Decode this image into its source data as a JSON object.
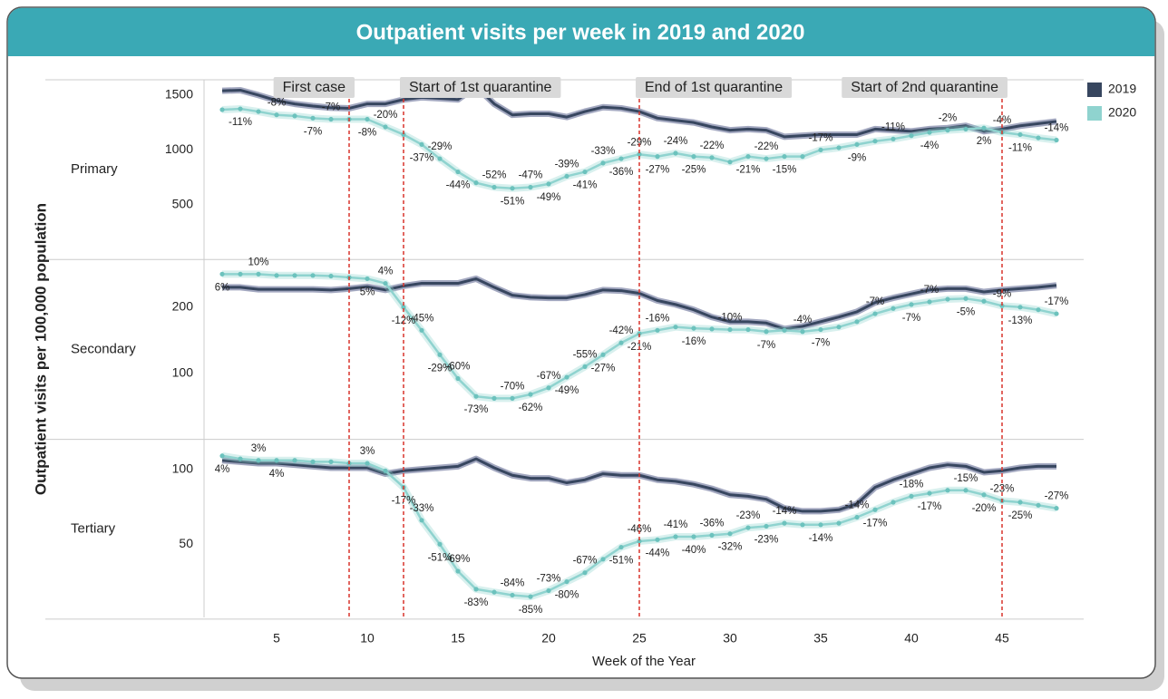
{
  "title": "Outpatient visits per week in 2019 and 2020",
  "y_label": "Outpatient visits per 100,000 population",
  "x_label": "Week of the Year",
  "xlim": [
    1,
    49.5
  ],
  "xticks": [
    5,
    10,
    15,
    20,
    25,
    30,
    35,
    40,
    45
  ],
  "x": [
    2,
    3,
    4,
    5,
    6,
    7,
    8,
    9,
    10,
    11,
    12,
    13,
    14,
    15,
    16,
    17,
    18,
    19,
    20,
    21,
    22,
    23,
    24,
    25,
    26,
    27,
    28,
    29,
    30,
    31,
    32,
    33,
    34,
    35,
    36,
    37,
    38,
    39,
    40,
    41,
    42,
    43,
    44,
    45,
    46,
    47,
    48
  ],
  "series": [
    {
      "name": "2019",
      "color": "#37465f"
    },
    {
      "name": "2020",
      "color": "#8fd3cf"
    }
  ],
  "events": [
    {
      "week": 9,
      "label": "First case"
    },
    {
      "week": 12,
      "label": "Start of 1st quarantine"
    },
    {
      "week": 25,
      "label": "End of 1st quarantine"
    },
    {
      "week": 45,
      "label": "Start of 2nd quarantine"
    }
  ],
  "chart_data": [
    {
      "type": "line",
      "name": "Primary",
      "ylim": [
        0,
        1640
      ],
      "yticks": [
        500,
        1000,
        1500
      ],
      "series": [
        {
          "values": [
            1540,
            1545,
            1500,
            1450,
            1420,
            1400,
            1385,
            1380,
            1420,
            1420,
            1460,
            1480,
            1470,
            1460,
            1580,
            1420,
            1320,
            1330,
            1330,
            1300,
            1350,
            1390,
            1380,
            1350,
            1290,
            1270,
            1250,
            1210,
            1180,
            1190,
            1180,
            1120,
            1130,
            1140,
            1140,
            1140,
            1190,
            1180,
            1170,
            1190,
            1200,
            1220,
            1170,
            1190,
            1220,
            1240,
            1260
          ]
        },
        {
          "values": [
            1367,
            1375,
            1350,
            1320,
            1310,
            1290,
            1280,
            1280,
            1280,
            1210,
            1140,
            1050,
            920,
            800,
            700,
            660,
            650,
            660,
            690,
            760,
            800,
            880,
            920,
            960,
            940,
            970,
            940,
            930,
            890,
            940,
            920,
            940,
            940,
            1000,
            1020,
            1050,
            1080,
            1100,
            1130,
            1160,
            1180,
            1190,
            1200,
            1160,
            1140,
            1110,
            1090
          ]
        }
      ],
      "changes": [
        {
          "week": 3,
          "value": -11,
          "label": "-11%"
        },
        {
          "week": 5,
          "value": -8,
          "label": "-8%"
        },
        {
          "week": 7,
          "value": -7,
          "label": "-7%"
        },
        {
          "week": 8,
          "value": -7,
          "label": "-7%"
        },
        {
          "week": 10,
          "value": -8,
          "label": "-8%"
        },
        {
          "week": 11,
          "value": -20,
          "label": "-20%"
        },
        {
          "week": 13,
          "value": -37,
          "label": "-37%"
        },
        {
          "week": 14,
          "value": -29,
          "label": "-29%"
        },
        {
          "week": 15,
          "value": -44,
          "label": "-44%"
        },
        {
          "week": 17,
          "value": -52,
          "label": "-52%"
        },
        {
          "week": 18,
          "value": -51,
          "label": "-51%"
        },
        {
          "week": 19,
          "value": -47,
          "label": "-47%"
        },
        {
          "week": 20,
          "value": -49,
          "label": "-49%"
        },
        {
          "week": 21,
          "value": -39,
          "label": "-39%"
        },
        {
          "week": 22,
          "value": -41,
          "label": "-41%"
        },
        {
          "week": 23,
          "value": -33,
          "label": "-33%"
        },
        {
          "week": 24,
          "value": -36,
          "label": "-36%"
        },
        {
          "week": 25,
          "value": -29,
          "label": "-29%"
        },
        {
          "week": 26,
          "value": -27,
          "label": "-27%"
        },
        {
          "week": 27,
          "value": -24,
          "label": "-24%"
        },
        {
          "week": 28,
          "value": -25,
          "label": "-25%"
        },
        {
          "week": 29,
          "value": -22,
          "label": "-22%"
        },
        {
          "week": 31,
          "value": -21,
          "label": "-21%"
        },
        {
          "week": 32,
          "value": -22,
          "label": "-22%"
        },
        {
          "week": 33,
          "value": -15,
          "label": "-15%"
        },
        {
          "week": 35,
          "value": -17,
          "label": "-17%"
        },
        {
          "week": 37,
          "value": -9,
          "label": "-9%"
        },
        {
          "week": 39,
          "value": -11,
          "label": "-11%"
        },
        {
          "week": 41,
          "value": -4,
          "label": "-4%"
        },
        {
          "week": 42,
          "value": -2,
          "label": "-2%"
        },
        {
          "week": 44,
          "value": 2,
          "label": "2%"
        },
        {
          "week": 45,
          "value": -4,
          "label": "-4%"
        },
        {
          "week": 46,
          "value": -11,
          "label": "-11%"
        },
        {
          "week": 48,
          "value": -14,
          "label": "-14%"
        }
      ]
    },
    {
      "type": "line",
      "name": "Secondary",
      "ylim": [
        0,
        272
      ],
      "yticks": [
        100,
        200
      ],
      "series": [
        {
          "values": [
            230,
            230,
            227,
            227,
            227,
            227,
            226,
            228,
            231,
            226,
            232,
            236,
            236,
            236,
            243,
            230,
            218,
            215,
            214,
            214,
            219,
            226,
            225,
            221,
            210,
            204,
            196,
            185,
            178,
            178,
            176,
            167,
            171,
            178,
            185,
            193,
            207,
            214,
            220,
            226,
            228,
            228,
            223,
            226,
            228,
            230,
            233
          ]
        },
        {
          "values": [
            250,
            250,
            250,
            248,
            248,
            248,
            247,
            245,
            243,
            236,
            200,
            165,
            128,
            92,
            65,
            62,
            62,
            68,
            78,
            94,
            110,
            128,
            146,
            160,
            165,
            170,
            168,
            167,
            166,
            166,
            163,
            165,
            163,
            166,
            170,
            178,
            190,
            198,
            204,
            208,
            212,
            213,
            209,
            202,
            200,
            196,
            190
          ]
        }
      ],
      "changes": [
        {
          "week": 2,
          "value": 6,
          "label": "6%"
        },
        {
          "week": 4,
          "value": 10,
          "label": "10%"
        },
        {
          "week": 10,
          "value": 5,
          "label": "5%"
        },
        {
          "week": 11,
          "value": 4,
          "label": "4%"
        },
        {
          "week": 12,
          "value": -12,
          "label": "-12%"
        },
        {
          "week": 13,
          "value": -45,
          "label": "-45%"
        },
        {
          "week": 14,
          "value": -29,
          "label": "-29%"
        },
        {
          "week": 15,
          "value": -60,
          "label": "-60%"
        },
        {
          "week": 16,
          "value": -73,
          "label": "-73%"
        },
        {
          "week": 18,
          "value": -70,
          "label": "-70%"
        },
        {
          "week": 19,
          "value": -62,
          "label": "-62%"
        },
        {
          "week": 20,
          "value": -67,
          "label": "-67%"
        },
        {
          "week": 21,
          "value": -49,
          "label": "-49%"
        },
        {
          "week": 22,
          "value": -55,
          "label": "-55%"
        },
        {
          "week": 23,
          "value": -27,
          "label": "-27%"
        },
        {
          "week": 24,
          "value": -42,
          "label": "-42%"
        },
        {
          "week": 25,
          "value": -21,
          "label": "-21%"
        },
        {
          "week": 26,
          "value": -16,
          "label": "-16%"
        },
        {
          "week": 28,
          "value": -16,
          "label": "-16%"
        },
        {
          "week": 30,
          "value": -10,
          "label": "-10%"
        },
        {
          "week": 32,
          "value": -7,
          "label": "-7%"
        },
        {
          "week": 34,
          "value": -4,
          "label": "-4%"
        },
        {
          "week": 35,
          "value": -7,
          "label": "-7%"
        },
        {
          "week": 38,
          "value": -7,
          "label": "-7%"
        },
        {
          "week": 40,
          "value": -7,
          "label": "-7%"
        },
        {
          "week": 41,
          "value": -7,
          "label": "-7%"
        },
        {
          "week": 43,
          "value": -5,
          "label": "-5%"
        },
        {
          "week": 45,
          "value": -9,
          "label": "-9%"
        },
        {
          "week": 46,
          "value": -13,
          "label": "-13%"
        },
        {
          "week": 48,
          "value": -17,
          "label": "-17%"
        }
      ]
    },
    {
      "type": "line",
      "name": "Tertiary",
      "ylim": [
        0,
        120
      ],
      "yticks": [
        50,
        100
      ],
      "series": [
        {
          "values": [
            106,
            105,
            104,
            104,
            103,
            102,
            101,
            101,
            101,
            97,
            99,
            100,
            101,
            102,
            107,
            101,
            96,
            94,
            94,
            91,
            93,
            97,
            96,
            96,
            93,
            92,
            90,
            87,
            83,
            82,
            80,
            74,
            72,
            72,
            73,
            77,
            88,
            93,
            97,
            101,
            103,
            102,
            98,
            99,
            101,
            102,
            102
          ]
        },
        {
          "values": [
            109,
            107,
            106,
            106,
            106,
            105,
            105,
            104,
            104,
            99,
            88,
            66,
            50,
            32,
            20,
            18,
            16,
            15,
            19,
            25,
            31,
            40,
            48,
            52,
            53,
            55,
            55,
            56,
            57,
            61,
            62,
            64,
            63,
            63,
            64,
            68,
            73,
            78,
            82,
            84,
            86,
            86,
            83,
            79,
            78,
            76,
            74
          ]
        }
      ],
      "changes": [
        {
          "week": 2,
          "value": 4,
          "label": "4%"
        },
        {
          "week": 4,
          "value": 3,
          "label": "3%"
        },
        {
          "week": 5,
          "value": 4,
          "label": "4%"
        },
        {
          "week": 10,
          "value": 3,
          "label": "3%"
        },
        {
          "week": 12,
          "value": -17,
          "label": "-17%"
        },
        {
          "week": 13,
          "value": -33,
          "label": "-33%"
        },
        {
          "week": 14,
          "value": -51,
          "label": "-51%"
        },
        {
          "week": 15,
          "value": -69,
          "label": "-69%"
        },
        {
          "week": 16,
          "value": -83,
          "label": "-83%"
        },
        {
          "week": 18,
          "value": -84,
          "label": "-84%"
        },
        {
          "week": 19,
          "value": -85,
          "label": "-85%"
        },
        {
          "week": 20,
          "value": -73,
          "label": "-73%"
        },
        {
          "week": 21,
          "value": -80,
          "label": "-80%"
        },
        {
          "week": 22,
          "value": -67,
          "label": "-67%"
        },
        {
          "week": 24,
          "value": -51,
          "label": "-51%"
        },
        {
          "week": 25,
          "value": -46,
          "label": "-46%"
        },
        {
          "week": 26,
          "value": -44,
          "label": "-44%"
        },
        {
          "week": 27,
          "value": -41,
          "label": "-41%"
        },
        {
          "week": 28,
          "value": -40,
          "label": "-40%"
        },
        {
          "week": 29,
          "value": -36,
          "label": "-36%"
        },
        {
          "week": 30,
          "value": -32,
          "label": "-32%"
        },
        {
          "week": 31,
          "value": -23,
          "label": "-23%"
        },
        {
          "week": 32,
          "value": -23,
          "label": "-23%"
        },
        {
          "week": 33,
          "value": -14,
          "label": "-14%"
        },
        {
          "week": 35,
          "value": -14,
          "label": "-14%"
        },
        {
          "week": 37,
          "value": -14,
          "label": "-14%"
        },
        {
          "week": 38,
          "value": -17,
          "label": "-17%"
        },
        {
          "week": 40,
          "value": -18,
          "label": "-18%"
        },
        {
          "week": 41,
          "value": -17,
          "label": "-17%"
        },
        {
          "week": 43,
          "value": -15,
          "label": "-15%"
        },
        {
          "week": 44,
          "value": -20,
          "label": "-20%"
        },
        {
          "week": 45,
          "value": -23,
          "label": "-23%"
        },
        {
          "week": 46,
          "value": -25,
          "label": "-25%"
        },
        {
          "week": 48,
          "value": -27,
          "label": "-27%"
        }
      ]
    }
  ]
}
